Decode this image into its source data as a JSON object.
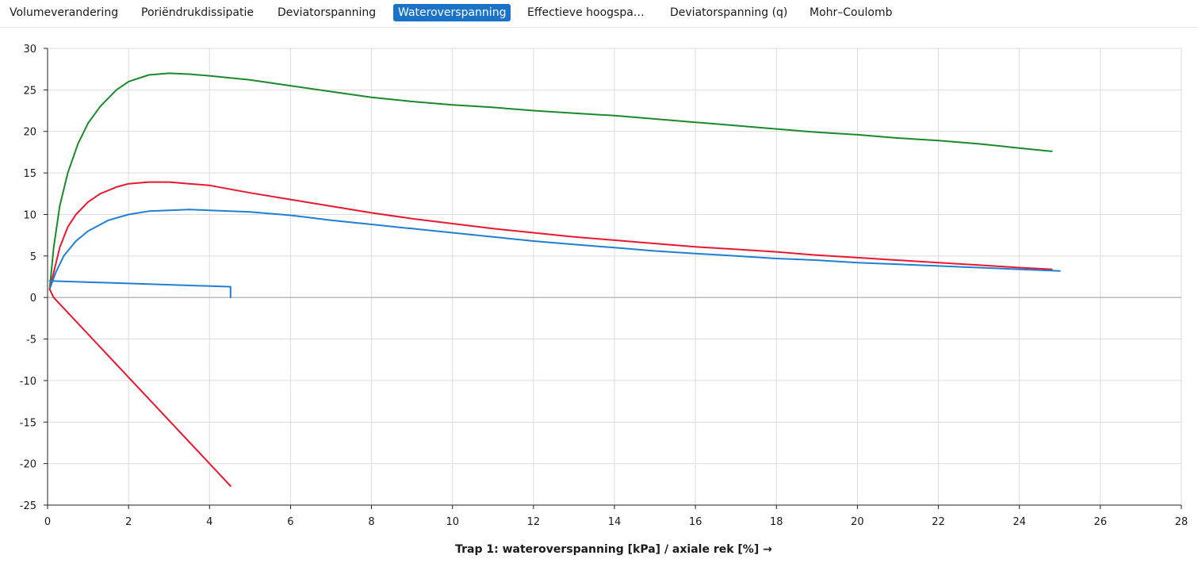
{
  "tabs": [
    {
      "label": "Volumeverandering",
      "active": false
    },
    {
      "label": "Poriëndrukdissipatie",
      "active": false
    },
    {
      "label": "Deviatorspanning",
      "active": false
    },
    {
      "label": "Wateroverspanning",
      "active": true
    },
    {
      "label": "Effectieve hoogspa…",
      "active": false
    },
    {
      "label": "Deviatorspanning (q)",
      "active": false
    },
    {
      "label": "Mohr–Coulomb",
      "active": false
    }
  ],
  "colors": {
    "active_tab": "#1a73c7",
    "green": "#1a8a2a",
    "red": "#e8182e",
    "blue": "#1f7fd4",
    "grid": "#dcdcdc",
    "axis": "#222222"
  },
  "chart_data": {
    "type": "line",
    "xlabel": "Trap 1: wateroverspanning [kPa] / axiale rek [%] →",
    "ylabel": "",
    "xlim": [
      0,
      28
    ],
    "ylim": [
      -25,
      30
    ],
    "xticks": [
      0,
      2,
      4,
      6,
      8,
      10,
      12,
      14,
      16,
      18,
      20,
      22,
      24,
      26,
      28
    ],
    "yticks": [
      30,
      25,
      20,
      15,
      10,
      5,
      0,
      -5,
      -10,
      -15,
      -20,
      -25
    ],
    "grid": true,
    "series": [
      {
        "color": "#1a8a2a",
        "x": [
          0.05,
          0.15,
          0.3,
          0.5,
          0.75,
          1.0,
          1.3,
          1.7,
          2.0,
          2.5,
          3.0,
          3.5,
          4.0,
          5.0,
          6.0,
          7.0,
          8.0,
          9.0,
          10.0,
          11.0,
          12.0,
          13.0,
          14.0,
          15.0,
          16.0,
          17.0,
          18.0,
          19.0,
          20.0,
          21.0,
          22.0,
          23.0,
          24.0,
          24.8
        ],
        "y": [
          1.0,
          6.0,
          11.0,
          15.0,
          18.5,
          21.0,
          23.0,
          25.0,
          26.0,
          26.8,
          27.0,
          26.9,
          26.7,
          26.2,
          25.5,
          24.8,
          24.1,
          23.6,
          23.2,
          22.9,
          22.5,
          22.2,
          21.9,
          21.5,
          21.1,
          20.7,
          20.3,
          19.9,
          19.6,
          19.2,
          18.9,
          18.5,
          18.0,
          17.6
        ]
      },
      {
        "color": "#e8182e",
        "x": [
          0.05,
          0.15,
          0.3,
          0.5,
          0.7,
          1.0,
          1.3,
          1.7,
          2.0,
          2.5,
          3.0,
          3.5,
          4.0,
          5.0,
          6.0,
          7.0,
          8.0,
          9.0,
          10.0,
          11.0,
          12.0,
          13.0,
          14.0,
          15.0,
          16.0,
          17.0,
          18.0,
          19.0,
          20.0,
          21.0,
          22.0,
          23.0,
          24.0,
          24.8
        ],
        "y": [
          1.0,
          3.0,
          6.0,
          8.5,
          10.0,
          11.5,
          12.5,
          13.3,
          13.7,
          13.9,
          13.9,
          13.7,
          13.5,
          12.6,
          11.8,
          11.0,
          10.2,
          9.5,
          8.9,
          8.3,
          7.8,
          7.3,
          6.9,
          6.5,
          6.1,
          5.8,
          5.5,
          5.1,
          4.8,
          4.5,
          4.2,
          3.9,
          3.6,
          3.4
        ]
      },
      {
        "color": "#1f7fd4",
        "x": [
          0.05,
          0.2,
          0.4,
          0.7,
          1.0,
          1.5,
          2.0,
          2.5,
          3.0,
          3.5,
          4.0,
          4.5,
          5.0,
          6.0,
          7.0,
          8.0,
          9.0,
          10.0,
          11.0,
          12.0,
          13.0,
          14.0,
          15.0,
          16.0,
          17.0,
          18.0,
          19.0,
          20.0,
          21.0,
          22.0,
          23.0,
          24.0,
          25.0
        ],
        "y": [
          1.0,
          3.0,
          5.0,
          6.8,
          8.0,
          9.3,
          10.0,
          10.4,
          10.5,
          10.6,
          10.5,
          10.4,
          10.3,
          9.9,
          9.3,
          8.8,
          8.3,
          7.8,
          7.3,
          6.8,
          6.4,
          6.0,
          5.6,
          5.3,
          5.0,
          4.7,
          4.5,
          4.2,
          4.0,
          3.8,
          3.6,
          3.4,
          3.2
        ]
      },
      {
        "color": "#1f7fd4",
        "x": [
          0.05,
          4.52,
          4.52
        ],
        "y": [
          2.0,
          1.3,
          0.0
        ]
      },
      {
        "color": "#e8182e",
        "x": [
          0.05,
          0.15,
          4.52
        ],
        "y": [
          1.0,
          0.0,
          -22.7
        ]
      }
    ]
  }
}
